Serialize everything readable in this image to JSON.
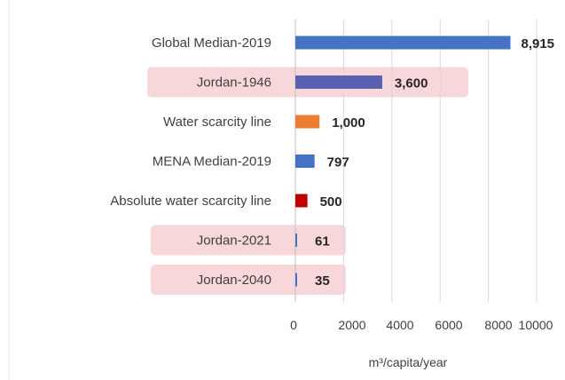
{
  "chart_data": {
    "type": "bar",
    "orientation": "horizontal",
    "categories": [
      "Global Median-2019",
      "Jordan-1946",
      "Water scarcity line",
      "MENA Median-2019",
      "Absolute water scarcity line",
      "Jordan-2021",
      "Jordan-2040"
    ],
    "values": [
      8915,
      3600,
      1000,
      797,
      500,
      61,
      35
    ],
    "value_labels": [
      "8,915",
      "3,600",
      "1,000",
      "797",
      "500",
      "61",
      "35"
    ],
    "bar_colors": [
      "#4472c4",
      "#5a5fb0",
      "#ed7d31",
      "#4472c4",
      "#c00000",
      "#4472c4",
      "#4472c4"
    ],
    "highlighted_categories": [
      "Jordan-1946",
      "Jordan-2021",
      "Jordan-2040"
    ],
    "highlight_color": "#f8d7da",
    "title": "",
    "xlabel": "m³/capita/year",
    "ylabel": "",
    "xlim": [
      0,
      10000
    ],
    "xticks": [
      0,
      2000,
      4000,
      6000,
      8000,
      10000
    ],
    "xtick_labels": [
      "0",
      "2000",
      "4000",
      "6000",
      "8000",
      "10000"
    ],
    "grid": "vertical"
  }
}
